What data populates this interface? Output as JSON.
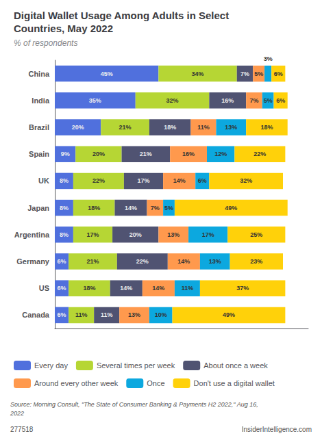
{
  "chart_data": {
    "type": "bar",
    "orientation": "horizontal",
    "stacked": true,
    "data_labels": true,
    "grid": false,
    "legend": "bottom",
    "tick_labels": "y",
    "title": "Digital Wallet Usage Among Adults in Select\nCountries, May 2022",
    "subtitle": "% of respondents",
    "annotations": [
      "Source: Morning Consult, \"The State of Consumer Banking & Payments H2 2022,\" Aug 16,\n2022",
      "277518",
      "InsiderIntelligence.com"
    ],
    "categories": [
      "China",
      "India",
      "Brazil",
      "Spain",
      "UK",
      "Japan",
      "Argentina",
      "Germany",
      "US",
      "Canada"
    ],
    "xlim": [
      0,
      110
    ],
    "series": [
      {
        "name": "Every day",
        "values": [
          45,
          35,
          20,
          9,
          8,
          8,
          8,
          6,
          6,
          6
        ],
        "value_labels": [
          "45%",
          "35%",
          "20%",
          "9%",
          "8%",
          "8%",
          "8%",
          "6%",
          "6%",
          "6%"
        ]
      },
      {
        "name": "Several times per week",
        "values": [
          34,
          32,
          21,
          20,
          22,
          18,
          17,
          21,
          18,
          11
        ],
        "value_labels": [
          "34%",
          "32%",
          "21%",
          "20%",
          "22%",
          "18%",
          "17%",
          "21%",
          "18%",
          "11%"
        ]
      },
      {
        "name": "About once a week",
        "values": [
          7,
          16,
          18,
          21,
          17,
          14,
          20,
          22,
          14,
          11
        ],
        "value_labels": [
          "7%",
          "16%",
          "18%",
          "21%",
          "17%",
          "14%",
          "20%",
          "22%",
          "14%",
          "11%"
        ]
      },
      {
        "name": "Around every other week",
        "values": [
          5,
          7,
          11,
          16,
          14,
          7,
          13,
          14,
          14,
          13
        ],
        "value_labels": [
          "5%",
          "7%",
          "11%",
          "16%",
          "14%",
          "7%",
          "13%",
          "14%",
          "14%",
          "13%"
        ]
      },
      {
        "name": "Once",
        "values": [
          3,
          5,
          13,
          12,
          6,
          5,
          17,
          13,
          11,
          10
        ],
        "value_labels": [
          "3%",
          "5%",
          "13%",
          "12%",
          "6%",
          "5%",
          "17%",
          "13%",
          "11%",
          "10%"
        ]
      },
      {
        "name": "Don't use a digital wallet",
        "values": [
          6,
          6,
          18,
          22,
          32,
          49,
          25,
          23,
          37,
          49
        ],
        "value_labels": [
          "6%",
          "6%",
          "18%",
          "22%",
          "32%",
          "49%",
          "25%",
          "23%",
          "37%",
          "49%"
        ]
      }
    ]
  }
}
